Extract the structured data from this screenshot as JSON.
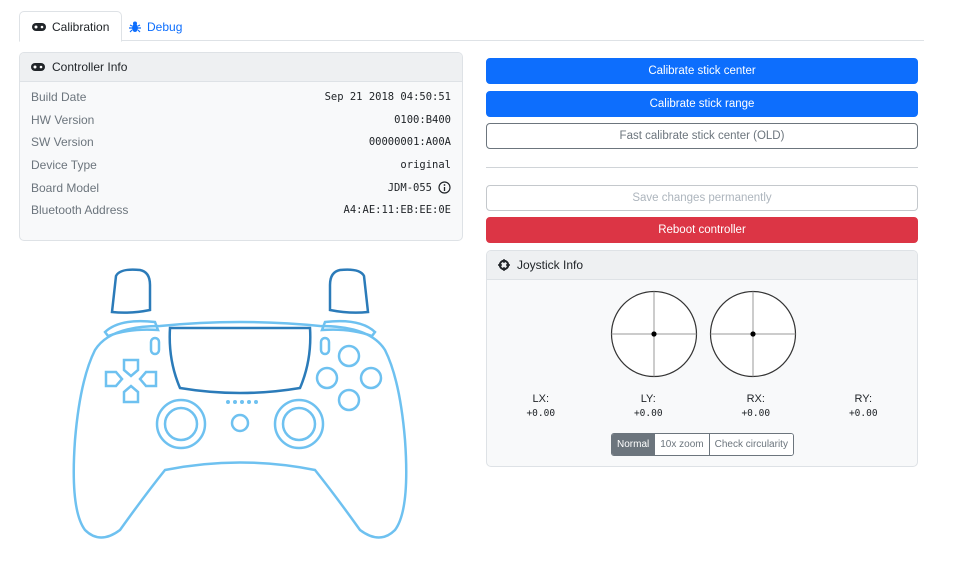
{
  "tabs": [
    {
      "label": "Calibration",
      "icon": "gamepad-icon",
      "active": true
    },
    {
      "label": "Debug",
      "icon": "bug-icon",
      "active": false
    }
  ],
  "controller_info": {
    "title": "Controller Info",
    "rows": [
      {
        "label": "Build Date",
        "value": "Sep 21 2018 04:50:51"
      },
      {
        "label": "HW Version",
        "value": "0100:B400"
      },
      {
        "label": "SW Version",
        "value": "00000001:A00A"
      },
      {
        "label": "Device Type",
        "value": "original"
      },
      {
        "label": "Board Model",
        "value": "JDM-055"
      },
      {
        "label": "Bluetooth Address",
        "value": "A4:AE:11:EB:EE:0E"
      }
    ]
  },
  "actions": {
    "calibrate_center": "Calibrate stick center",
    "calibrate_range": "Calibrate stick range",
    "fast_calibrate": "Fast calibrate stick center (OLD)",
    "save": "Save changes permanently",
    "reboot": "Reboot controller"
  },
  "joystick_info": {
    "title": "Joystick Info",
    "axes": [
      {
        "label": "LX:",
        "value": "+0.00"
      },
      {
        "label": "LY:",
        "value": "+0.00"
      },
      {
        "label": "RX:",
        "value": "+0.00"
      },
      {
        "label": "RY:",
        "value": "+0.00"
      }
    ],
    "modes": [
      "Normal",
      "10x zoom",
      "Check circularity"
    ],
    "selected_mode": "Normal"
  },
  "colors": {
    "primary": "#0d6efd",
    "danger": "#dc3545",
    "controller_outline": "#6ec1f0",
    "controller_dark": "#2b7bb9"
  }
}
